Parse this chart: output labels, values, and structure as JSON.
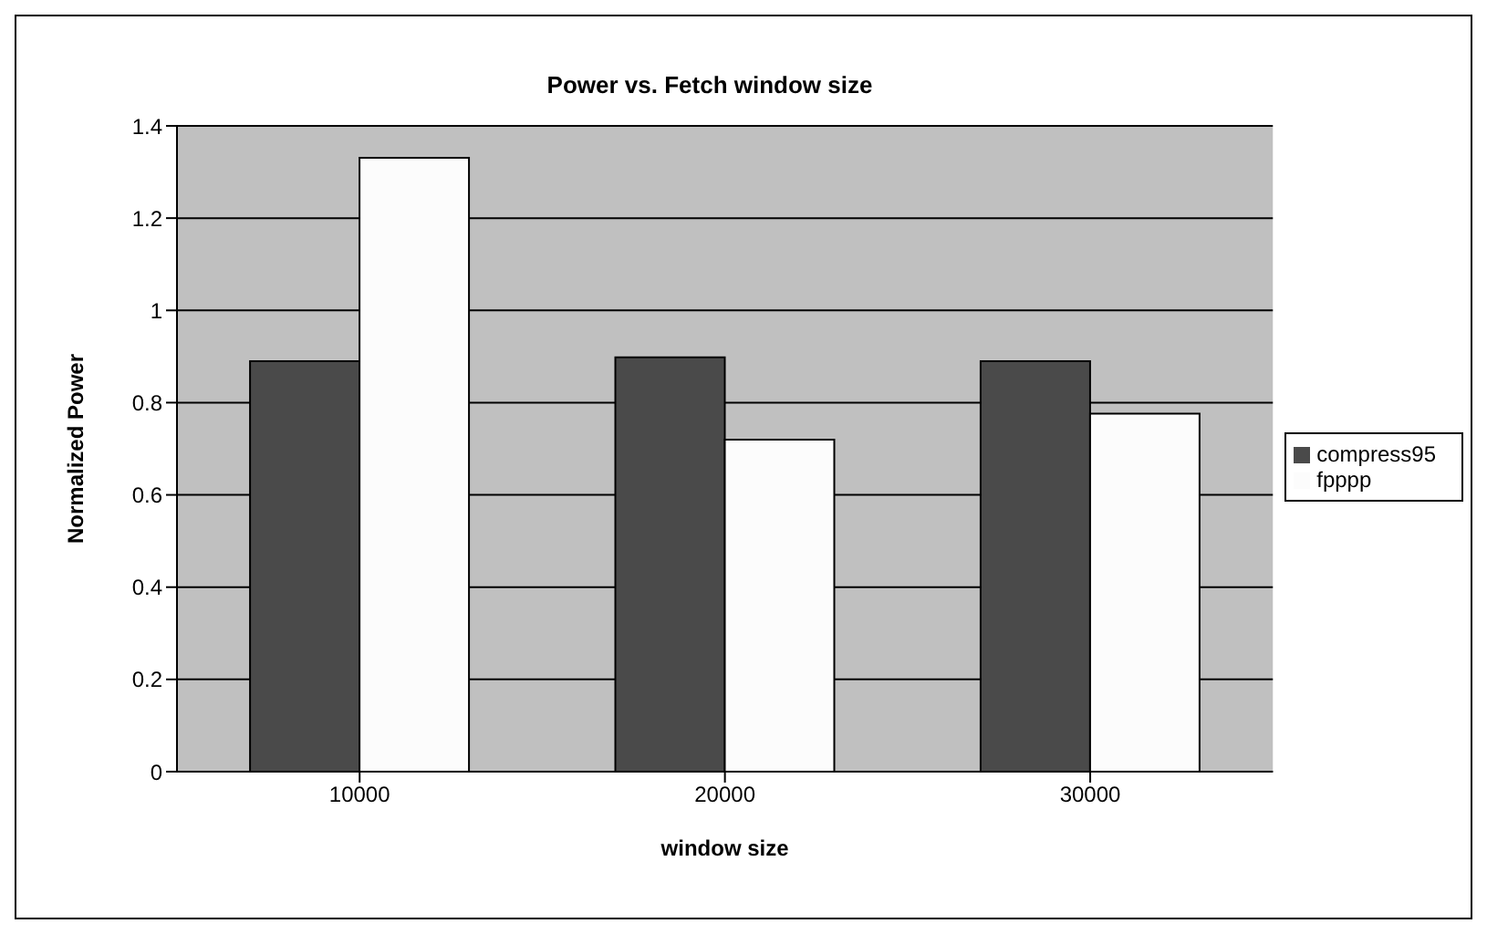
{
  "chart_data": {
    "type": "bar",
    "title": "Power vs. Fetch window size",
    "xlabel": "window size",
    "ylabel": "Normalized Power",
    "categories": [
      "10000",
      "20000",
      "30000"
    ],
    "series": [
      {
        "name": "compress95",
        "color": "#4a4a4a",
        "values": [
          0.89,
          0.898,
          0.89
        ]
      },
      {
        "name": "fpppp",
        "color": "#fcfcfc",
        "values": [
          1.331,
          0.72,
          0.776
        ]
      }
    ],
    "ylim": [
      0,
      1.4
    ],
    "yticks": [
      0,
      0.2,
      0.4,
      0.6,
      0.8,
      1,
      1.2,
      1.4
    ],
    "grid": "y",
    "legend": "right"
  }
}
